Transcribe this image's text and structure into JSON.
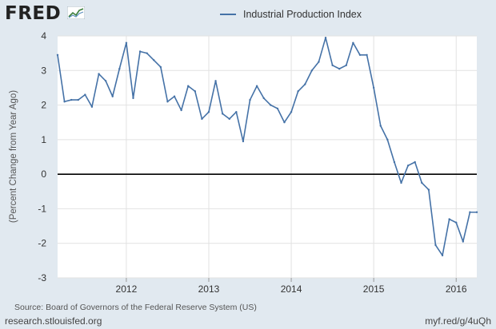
{
  "header": {
    "logo_text": "FRED"
  },
  "footer": {
    "source": "Source: Board of Governors of the Federal Reserve System (US)",
    "site": "research.stlouisfed.org",
    "short_link": "myf.red/g/4uQh"
  },
  "colors": {
    "series": "#4572a7",
    "background": "#e1e9f0",
    "plot": "#ffffff",
    "zero_line": "#000000"
  },
  "chart_data": {
    "type": "line",
    "title": "",
    "legend": "top-center",
    "grid": true,
    "xlabel": "",
    "ylabel": "(Percent Change from Year Ago)",
    "x_ticks": [
      "2012",
      "2013",
      "2014",
      "2015",
      "2016"
    ],
    "y_ticks": [
      "-3",
      "-2",
      "-1",
      "0",
      "1",
      "2",
      "3",
      "4"
    ],
    "ylim": [
      -3,
      4
    ],
    "xlim": [
      "2011-03",
      "2016-04"
    ],
    "series": [
      {
        "name": "Industrial Production Index",
        "x": [
          "2011-03",
          "2011-04",
          "2011-05",
          "2011-06",
          "2011-07",
          "2011-08",
          "2011-09",
          "2011-10",
          "2011-11",
          "2011-12",
          "2012-01",
          "2012-02",
          "2012-03",
          "2012-04",
          "2012-05",
          "2012-06",
          "2012-07",
          "2012-08",
          "2012-09",
          "2012-10",
          "2012-11",
          "2012-12",
          "2013-01",
          "2013-02",
          "2013-03",
          "2013-04",
          "2013-05",
          "2013-06",
          "2013-07",
          "2013-08",
          "2013-09",
          "2013-10",
          "2013-11",
          "2013-12",
          "2014-01",
          "2014-02",
          "2014-03",
          "2014-04",
          "2014-05",
          "2014-06",
          "2014-07",
          "2014-08",
          "2014-09",
          "2014-10",
          "2014-11",
          "2014-12",
          "2015-01",
          "2015-02",
          "2015-03",
          "2015-04",
          "2015-05",
          "2015-06",
          "2015-07",
          "2015-08",
          "2015-09",
          "2015-10",
          "2015-11",
          "2015-12",
          "2016-01",
          "2016-02",
          "2016-03",
          "2016-04"
        ],
        "values": [
          3.45,
          2.1,
          2.15,
          2.15,
          2.3,
          1.95,
          2.9,
          2.7,
          2.25,
          3.05,
          3.8,
          2.2,
          3.55,
          3.5,
          3.3,
          3.1,
          2.1,
          2.25,
          1.85,
          2.55,
          2.4,
          1.6,
          1.8,
          2.7,
          1.75,
          1.6,
          1.8,
          0.95,
          2.15,
          2.55,
          2.2,
          2.0,
          1.9,
          1.5,
          1.8,
          2.4,
          2.6,
          3.0,
          3.25,
          3.95,
          3.15,
          3.05,
          3.15,
          3.8,
          3.45,
          3.45,
          2.5,
          1.4,
          1.0,
          0.35,
          -0.25,
          0.25,
          0.35,
          -0.25,
          -0.45,
          -2.05,
          -2.35,
          -1.3,
          -1.4,
          -1.95,
          -1.1,
          -1.1
        ]
      }
    ]
  }
}
